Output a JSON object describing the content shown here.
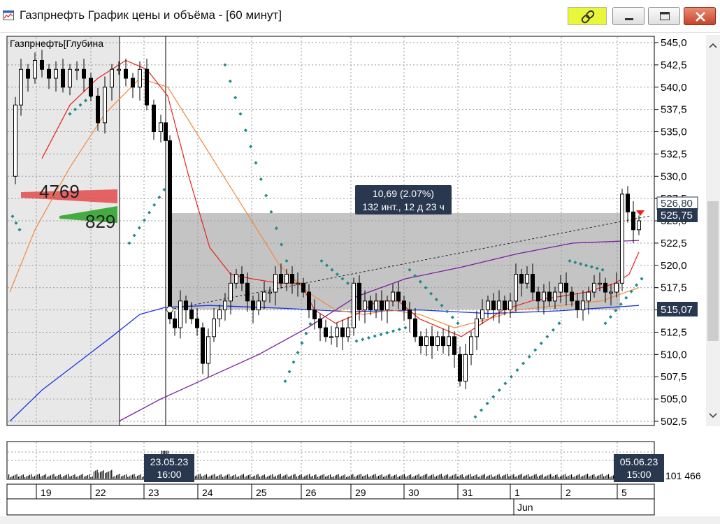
{
  "window": {
    "title": "Газпрнефть График цены и объёма - [60 минут]",
    "icons": {
      "app": "chart-app-icon",
      "link": "link-chain-icon",
      "minimize": "minimize-icon",
      "maximize": "maximize-icon",
      "close": "close-icon"
    },
    "colors": {
      "link_button": "#e8f73a",
      "close_button": "#c6442a"
    }
  },
  "legend": {
    "label": "Газпрнефть[Глубина"
  },
  "depth": {
    "ask_volume": "4769",
    "bid_volume": "829",
    "ask_color": "#e24a4a",
    "bid_color": "#27a023"
  },
  "measure_box": {
    "line1": "10,69 (2.07%)",
    "line2": "132 инт., 12 д 23 ч"
  },
  "price_axis": {
    "ticks": [
      "545,0",
      "542,5",
      "540,0",
      "537,5",
      "535,0",
      "532,5",
      "530,0",
      "527,5",
      "525,0",
      "522,5",
      "520,0",
      "517,5",
      "515,0",
      "512,5",
      "510,0",
      "507,5",
      "505,0",
      "502,5"
    ],
    "labels": [
      {
        "text": "526,80",
        "style": "outline"
      },
      {
        "text": "525,75",
        "style": "filled"
      },
      {
        "text": "515,07",
        "style": "filled"
      }
    ]
  },
  "volume": {
    "axis_value": "101 466",
    "marker_start": {
      "date": "23.05.23",
      "time": "16:00"
    },
    "marker_end": {
      "date": "05.06.23",
      "time": "15:00"
    }
  },
  "date_axis": {
    "days": [
      "19",
      "22",
      "23",
      "24",
      "25",
      "26",
      "29",
      "30",
      "31",
      "1",
      "2",
      "5"
    ],
    "month_label": "Jun"
  },
  "colors": {
    "candle": "#000000",
    "ma_fast": "#e8231a",
    "ma_medium": "#f08a3a",
    "ma_slow": "#7a1fa0",
    "ma_long": "#1a36e0",
    "parabolic_sar": "#1f8a8a",
    "selection": "#c4c4c4",
    "label_fill": "#29384f"
  }
}
